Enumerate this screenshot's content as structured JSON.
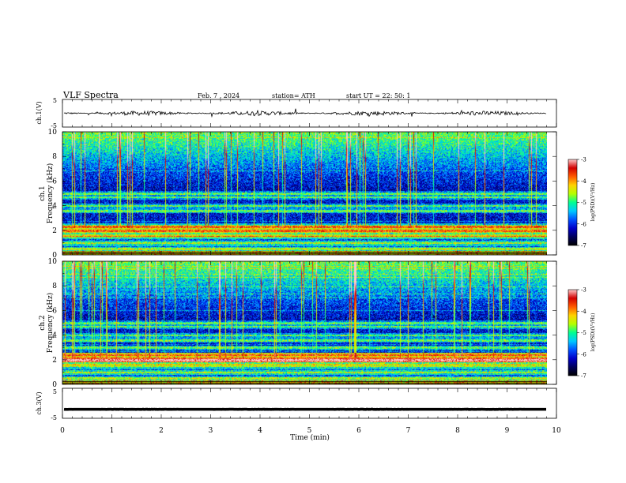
{
  "header": {
    "title": "VLF  Spectra",
    "date": "Feb. 7  , 2024",
    "station": "station= ATH",
    "start": "start  UT  =   22: 50: 1"
  },
  "chart_data": [
    {
      "type": "line",
      "ylabel": "ch.1(V)",
      "ylim": [
        -5,
        5
      ],
      "yticks": [
        "5",
        "-5"
      ],
      "series": [
        {
          "baseline": 0,
          "noise_amplitude": 0.8,
          "color": "#000000"
        }
      ]
    },
    {
      "type": "heatmap",
      "ylabel": "ch.1\nFrequency  (kHz)",
      "ylim": [
        0,
        10
      ],
      "yticks": [
        "10",
        "8",
        "6",
        "4",
        "2",
        "0"
      ],
      "colorbar": {
        "label": "log(PSD)(V²/Hz)",
        "range": [
          -7,
          -3
        ],
        "ticks": [
          "-3",
          "-4",
          "-5",
          "-6",
          "-7"
        ]
      },
      "bands_khz": [
        0.3,
        0.5,
        1.0,
        1.5,
        2.0,
        2.3,
        3.6,
        4.0,
        4.7,
        5.0
      ]
    },
    {
      "type": "heatmap",
      "ylabel": "ch.2\nFrequency  (kHz)",
      "ylim": [
        0,
        10
      ],
      "yticks": [
        "10",
        "8",
        "6",
        "4",
        "2",
        "0"
      ],
      "colorbar": {
        "label": "log(PSD)(V²/Hz)",
        "range": [
          -7,
          -3
        ],
        "ticks": [
          "-3",
          "-4",
          "-5",
          "-6",
          "-7"
        ]
      },
      "bands_khz": [
        0.3,
        0.5,
        1.0,
        1.5,
        2.0,
        2.4,
        3.0,
        3.6,
        4.0,
        4.7,
        5.0
      ]
    },
    {
      "type": "line",
      "ylabel": "ch.3(V)",
      "ylim": [
        -5,
        5
      ],
      "yticks": [
        "5",
        "-5"
      ],
      "series": [
        {
          "baseline": -2,
          "noise_amplitude": 0.05,
          "color": "#000000"
        }
      ]
    }
  ],
  "xaxis": {
    "label": "Time  (min)",
    "ticks": [
      "0",
      "1",
      "2",
      "3",
      "4",
      "5",
      "6",
      "7",
      "8",
      "9",
      "10"
    ],
    "xlim": [
      0,
      10
    ],
    "data_end_min": 9.8
  },
  "colors": {
    "colormap": [
      "#000000",
      "#00005a",
      "#0000c8",
      "#0050ff",
      "#00c8ff",
      "#00ff90",
      "#b4ff00",
      "#ffd200",
      "#ff5a00",
      "#d20000",
      "#ffc8c8"
    ]
  }
}
